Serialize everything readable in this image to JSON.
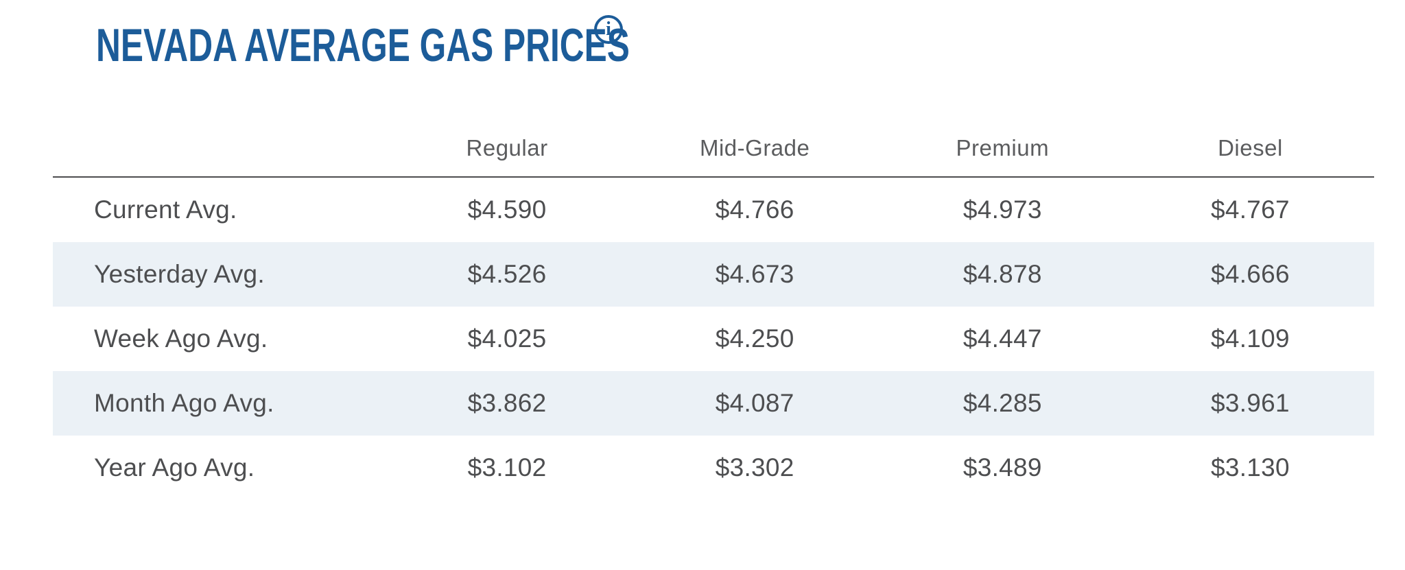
{
  "page": {
    "title": "NEVADA AVERAGE GAS PRICES",
    "info_glyph": "i"
  },
  "colors": {
    "accent_blue": "#1c5c99",
    "stripe_background": "#ebf1f6",
    "body_text": "#4d4e50",
    "header_text": "#5b5c5e",
    "divider": "#4d4d4f"
  },
  "table": {
    "columns": [
      "Regular",
      "Mid-Grade",
      "Premium",
      "Diesel"
    ],
    "rows": [
      {
        "label": "Current Avg.",
        "values": [
          "$4.590",
          "$4.766",
          "$4.973",
          "$4.767"
        ]
      },
      {
        "label": "Yesterday Avg.",
        "values": [
          "$4.526",
          "$4.673",
          "$4.878",
          "$4.666"
        ]
      },
      {
        "label": "Week Ago Avg.",
        "values": [
          "$4.025",
          "$4.250",
          "$4.447",
          "$4.109"
        ]
      },
      {
        "label": "Month Ago Avg.",
        "values": [
          "$3.862",
          "$4.087",
          "$4.285",
          "$3.961"
        ]
      },
      {
        "label": "Year Ago Avg.",
        "values": [
          "$3.102",
          "$3.302",
          "$3.489",
          "$3.130"
        ]
      }
    ]
  }
}
